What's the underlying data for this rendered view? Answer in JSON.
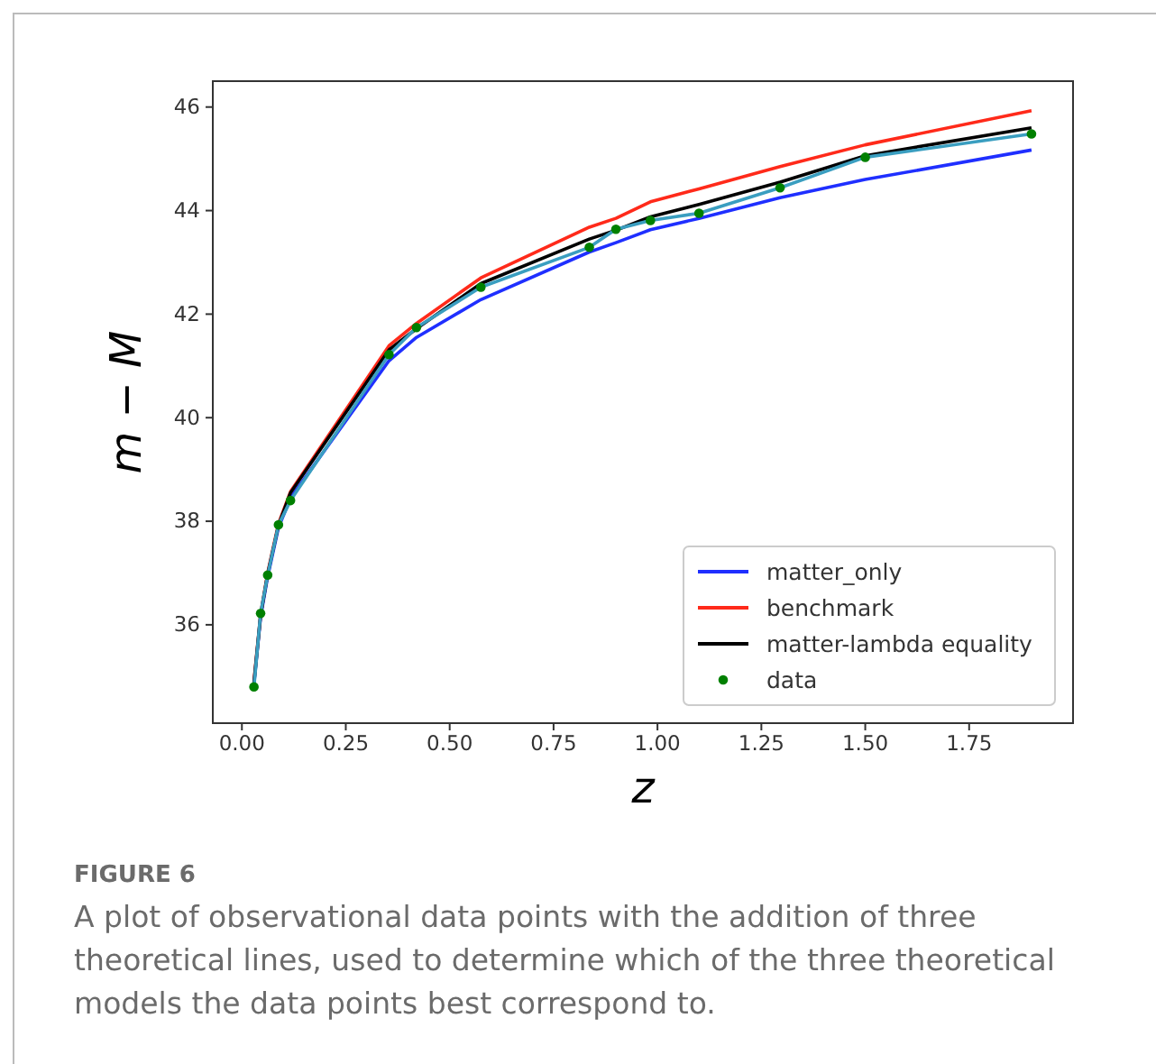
{
  "chart_data": {
    "type": "line",
    "xlabel": "z",
    "ylabel": "m − M",
    "x": [
      0.029,
      0.045,
      0.062,
      0.088,
      0.117,
      0.354,
      0.42,
      0.575,
      0.836,
      0.9,
      0.983,
      1.1,
      1.295,
      1.5,
      1.9
    ],
    "series": [
      {
        "name": "matter_only",
        "color": "#1f2fff",
        "values": [
          34.85,
          36.15,
          36.93,
          37.88,
          38.45,
          41.1,
          41.55,
          42.28,
          43.2,
          43.38,
          43.63,
          43.85,
          44.25,
          44.6,
          45.17
        ]
      },
      {
        "name": "benchmark",
        "color": "#ff2a1a",
        "values": [
          34.9,
          36.2,
          37.0,
          37.95,
          38.57,
          41.39,
          41.82,
          42.7,
          43.68,
          43.85,
          44.17,
          44.42,
          44.85,
          45.27,
          45.93
        ]
      },
      {
        "name": "matter-lambda equality",
        "color": "#000000",
        "values": [
          34.88,
          36.18,
          36.98,
          37.92,
          38.55,
          41.31,
          41.72,
          42.59,
          43.45,
          43.62,
          43.88,
          44.12,
          44.55,
          45.06,
          45.6
        ]
      },
      {
        "color": "#3a9ec0",
        "values": [
          34.8,
          36.22,
          36.96,
          37.93,
          38.4,
          41.22,
          41.74,
          42.52,
          43.29,
          43.64,
          43.81,
          43.95,
          44.44,
          45.03,
          45.48
        ]
      },
      {
        "name": "data",
        "type": "scatter",
        "marker": "circle",
        "color": "#008000",
        "values": [
          34.8,
          36.22,
          36.96,
          37.93,
          38.4,
          41.22,
          41.74,
          42.52,
          43.29,
          43.64,
          43.81,
          43.95,
          44.44,
          45.03,
          45.48
        ]
      }
    ],
    "xlim": [
      -0.07,
      2.0
    ],
    "ylim": [
      34.1,
      46.5
    ],
    "xticks": [
      {
        "value": 0,
        "label": "0.00"
      },
      {
        "value": 0.25,
        "label": "0.25"
      },
      {
        "value": 0.5,
        "label": "0.50"
      },
      {
        "value": 0.75,
        "label": "0.75"
      },
      {
        "value": 1,
        "label": "1.00"
      },
      {
        "value": 1.25,
        "label": "1.25"
      },
      {
        "value": 1.5,
        "label": "1.50"
      },
      {
        "value": 1.75,
        "label": "1.75"
      }
    ],
    "yticks": [
      36,
      38,
      40,
      42,
      44,
      46
    ],
    "legend": "bottom right",
    "grid": false,
    "annotations": [
      "FIGURE 6",
      "A plot of observational data points with the addition of three theoretical lines, used to determine which of the three theoretical models the data points best correspond to."
    ]
  }
}
